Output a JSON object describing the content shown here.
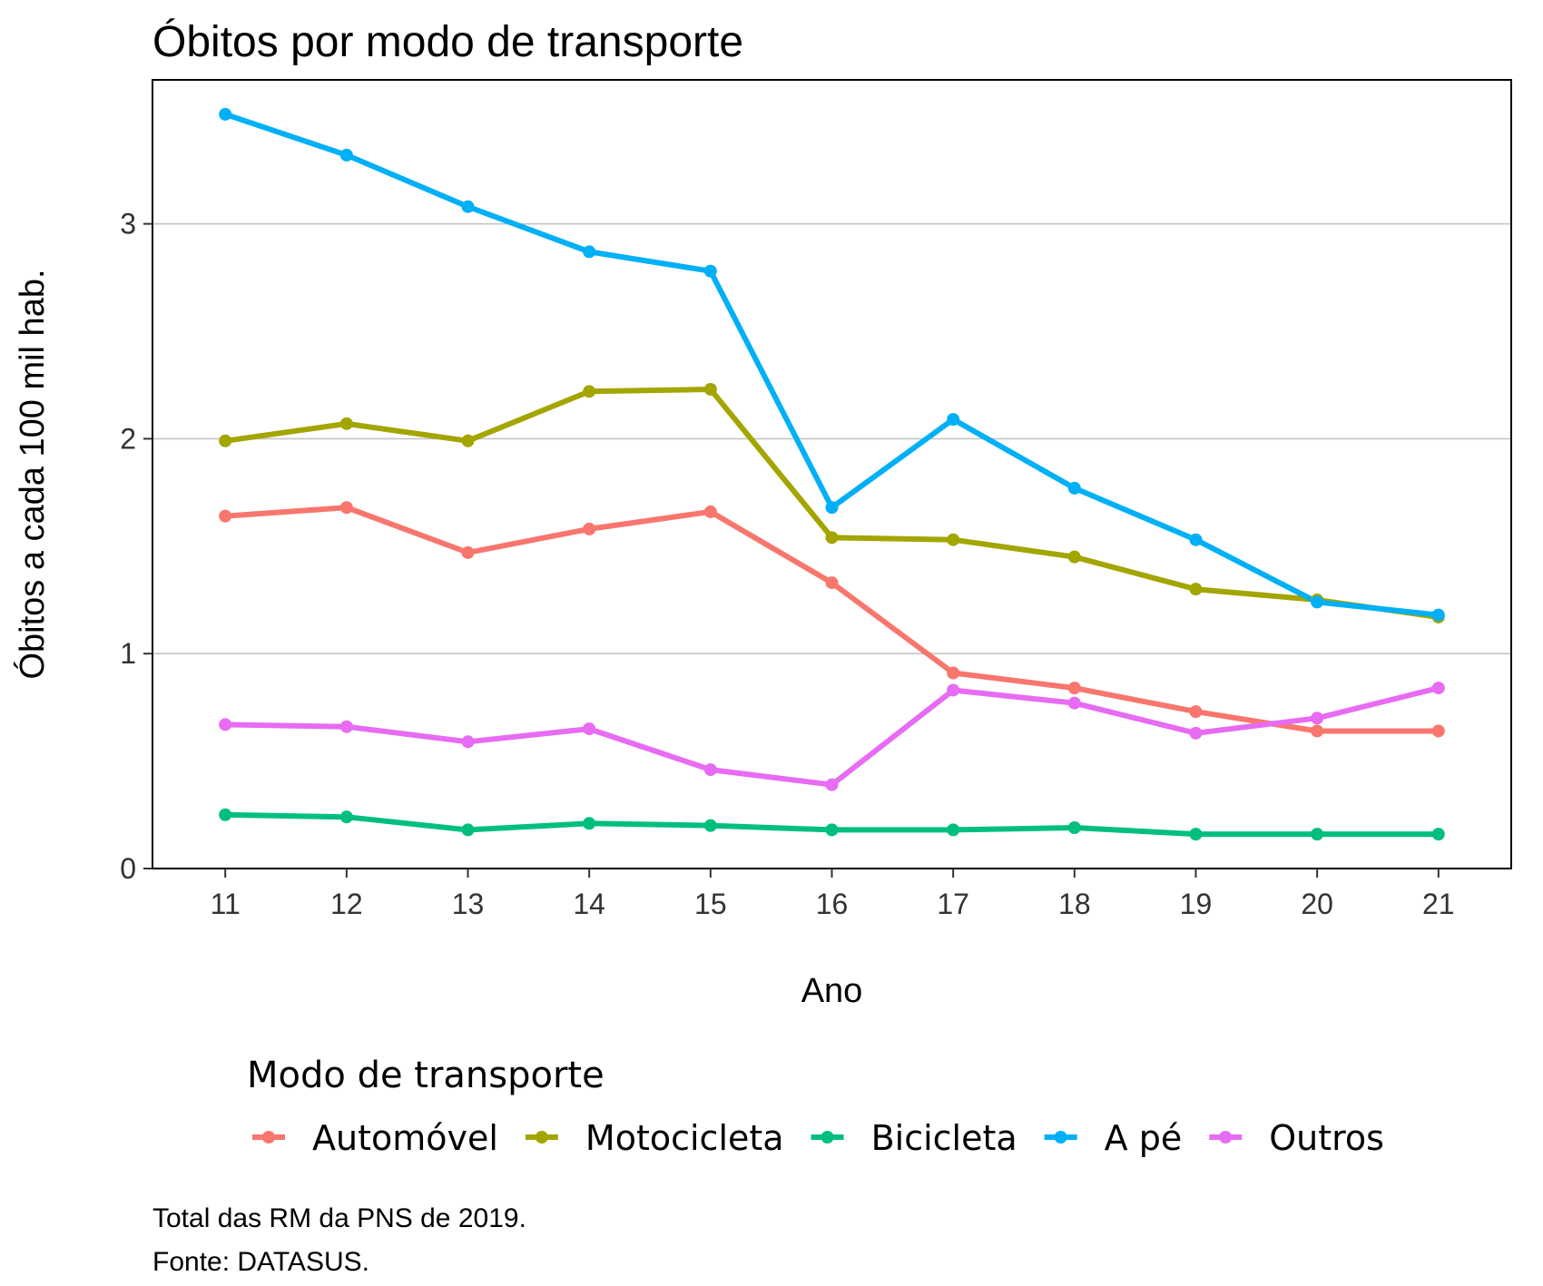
{
  "chart_data": {
    "type": "line",
    "title": "Óbitos por modo de transporte",
    "xlabel": "Ano",
    "ylabel": "Óbitos a cada 100 mil hab.",
    "x": [
      11,
      12,
      13,
      14,
      15,
      16,
      17,
      18,
      19,
      20,
      21
    ],
    "x_tick_labels": [
      "11",
      "12",
      "13",
      "14",
      "15",
      "16",
      "17",
      "18",
      "19",
      "20",
      "21"
    ],
    "y_ticks": [
      0,
      1,
      2,
      3
    ],
    "y_tick_labels": [
      "0",
      "1",
      "2",
      "3"
    ],
    "xlim": [
      10.4,
      21.6
    ],
    "ylim": [
      0,
      3.67
    ],
    "grid": "horizontal major lines",
    "legend": {
      "title": "Modo de transporte",
      "position": "bottom"
    },
    "series": [
      {
        "name": "Automóvel",
        "color": "#F8766D",
        "values": [
          1.64,
          1.68,
          1.47,
          1.58,
          1.66,
          1.33,
          0.91,
          0.84,
          0.73,
          0.64,
          0.64
        ]
      },
      {
        "name": "Motocicleta",
        "color": "#A3A500",
        "values": [
          1.99,
          2.07,
          1.99,
          2.22,
          2.23,
          1.54,
          1.53,
          1.45,
          1.3,
          1.25,
          1.17
        ]
      },
      {
        "name": "Bicicleta",
        "color": "#00BF7D",
        "values": [
          0.25,
          0.24,
          0.18,
          0.21,
          0.2,
          0.18,
          0.18,
          0.19,
          0.16,
          0.16,
          0.16
        ]
      },
      {
        "name": "A pé",
        "color": "#00B0F6",
        "values": [
          3.51,
          3.32,
          3.08,
          2.87,
          2.78,
          1.68,
          2.09,
          1.77,
          1.53,
          1.24,
          1.18
        ]
      },
      {
        "name": "Outros",
        "color": "#E76BF3",
        "values": [
          0.67,
          0.66,
          0.59,
          0.65,
          0.46,
          0.39,
          0.83,
          0.77,
          0.63,
          0.7,
          0.84
        ]
      }
    ]
  },
  "captions": [
    "Total das RM da PNS de 2019.",
    "Fonte: DATASUS."
  ]
}
